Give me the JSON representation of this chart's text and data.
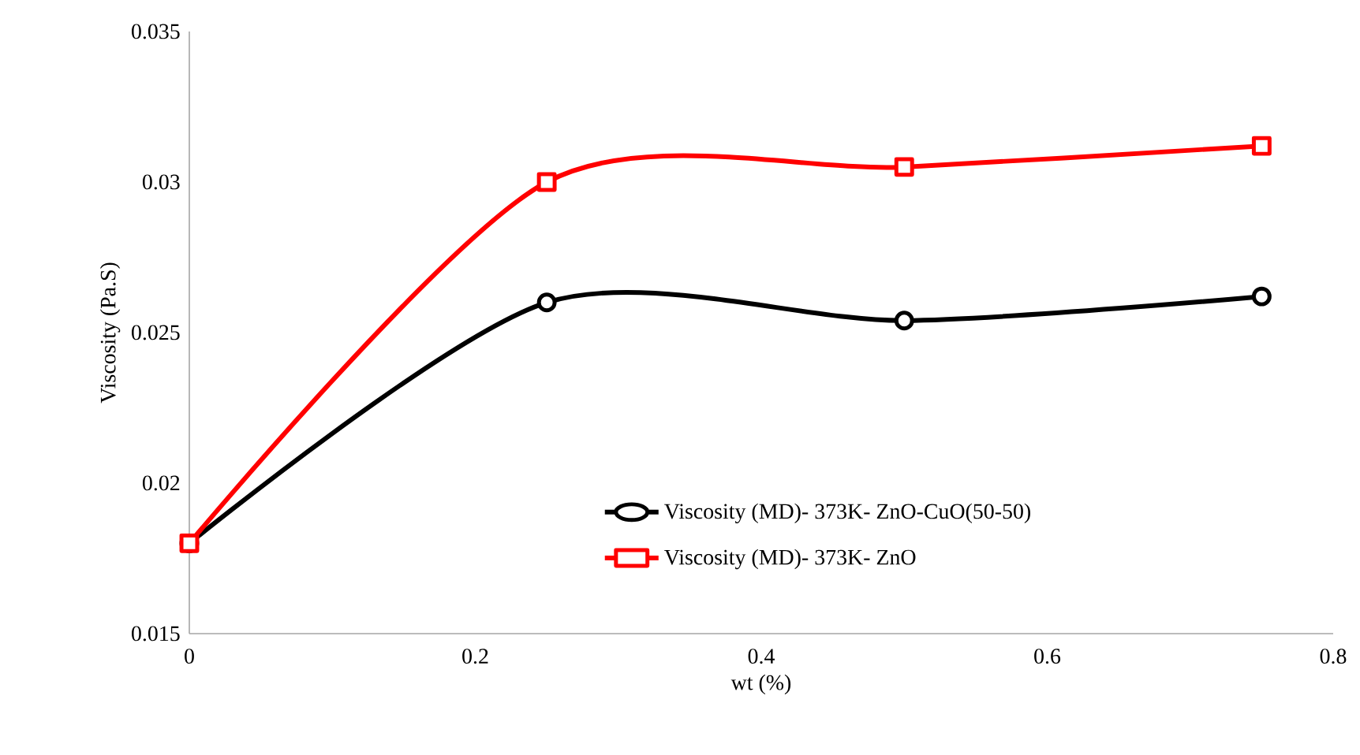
{
  "chart_data": {
    "type": "line",
    "xlabel": "wt (%)",
    "ylabel": "Viscosity (Pa.S)",
    "xlim": [
      0,
      0.8
    ],
    "xticks": [
      0,
      0.2,
      0.4,
      0.6,
      0.8
    ],
    "ylim": [
      0.015,
      0.035
    ],
    "yticks": [
      0.015,
      0.02,
      0.025,
      0.03,
      0.035
    ],
    "x": [
      0,
      0.25,
      0.5,
      0.75
    ],
    "series": [
      {
        "name": "Viscosity (MD)- 373K- ZnO-CuO(50-50)",
        "color": "#000000",
        "marker": "circle",
        "values": [
          0.018,
          0.026,
          0.0254,
          0.0262
        ]
      },
      {
        "name": "Viscosity (MD)- 373K- ZnO",
        "color": "#ff0000",
        "marker": "square",
        "values": [
          0.018,
          0.03,
          0.0305,
          0.0312
        ]
      }
    ],
    "legend": "bottom",
    "grid": false
  }
}
